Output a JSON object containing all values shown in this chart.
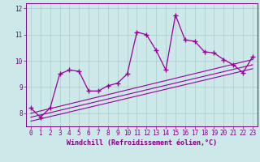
{
  "x_values": [
    0,
    1,
    2,
    3,
    4,
    5,
    6,
    7,
    8,
    9,
    10,
    11,
    12,
    13,
    14,
    15,
    16,
    17,
    18,
    19,
    20,
    21,
    22,
    23
  ],
  "y_main": [
    8.2,
    7.85,
    8.2,
    9.5,
    9.65,
    9.6,
    8.85,
    8.85,
    9.05,
    9.15,
    9.5,
    11.1,
    11.0,
    10.4,
    9.65,
    11.75,
    10.8,
    10.75,
    10.35,
    10.3,
    10.05,
    9.85,
    9.55,
    10.15
  ],
  "reg_lines": [
    {
      "start": 7.7,
      "end": 9.7
    },
    {
      "start": 7.85,
      "end": 9.85
    },
    {
      "start": 8.0,
      "end": 10.05
    }
  ],
  "line_color": "#990099",
  "bg_color": "#cce8e8",
  "grid_color": "#aacccc",
  "text_color": "#800080",
  "xlabel": "Windchill (Refroidissement éolien,°C)",
  "xlim_min": -0.5,
  "xlim_max": 23.5,
  "ylim_min": 7.5,
  "ylim_max": 12.2,
  "yticks": [
    8,
    9,
    10,
    11,
    12
  ],
  "xticks": [
    0,
    1,
    2,
    3,
    4,
    5,
    6,
    7,
    8,
    9,
    10,
    11,
    12,
    13,
    14,
    15,
    16,
    17,
    18,
    19,
    20,
    21,
    22,
    23
  ],
  "tick_fontsize": 5.5,
  "xlabel_fontsize": 6.0
}
